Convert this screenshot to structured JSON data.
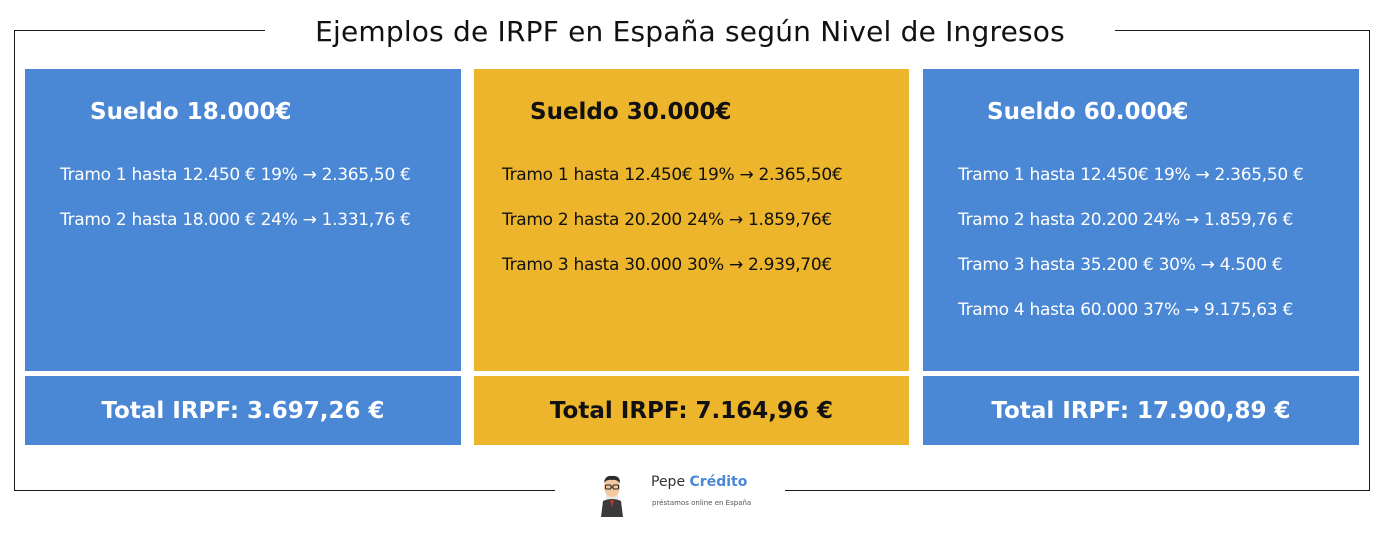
{
  "title": "Ejemplos de IRPF en España según Nivel de Ingresos",
  "colors": {
    "blue": "#4a87d4",
    "yellow": "#edb52c"
  },
  "cards": [
    {
      "sueldo": "Sueldo 18.000€",
      "tramos": [
        "Tramo 1 hasta 12.450 € 19% → 2.365,50 €",
        "Tramo 2 hasta 18.000 € 24% → 1.331,76 €"
      ],
      "total": "Total IRPF: 3.697,26 €"
    },
    {
      "sueldo": "Sueldo 30.000€",
      "tramos": [
        "Tramo 1 hasta 12.450€ 19% → 2.365,50€",
        "Tramo 2 hasta 20.200 24% → 1.859,76€",
        "Tramo 3 hasta 30.000 30% → 2.939,70€"
      ],
      "total": "Total IRPF: 7.164,96 €"
    },
    {
      "sueldo": "Sueldo 60.000€",
      "tramos": [
        "Tramo 1 hasta 12.450€ 19% → 2.365,50 €",
        "Tramo 2 hasta 20.200 24% → 1.859,76 €",
        "Tramo 3 hasta 35.200 € 30% → 4.500 €",
        "Tramo 4 hasta 60.000 37% → 9.175,63 €"
      ],
      "total": "Total IRPF: 17.900,89 €"
    }
  ],
  "logo": {
    "brand_first": "Pepe",
    "brand_second": "Crédito",
    "tagline": "préstamos online en España"
  }
}
